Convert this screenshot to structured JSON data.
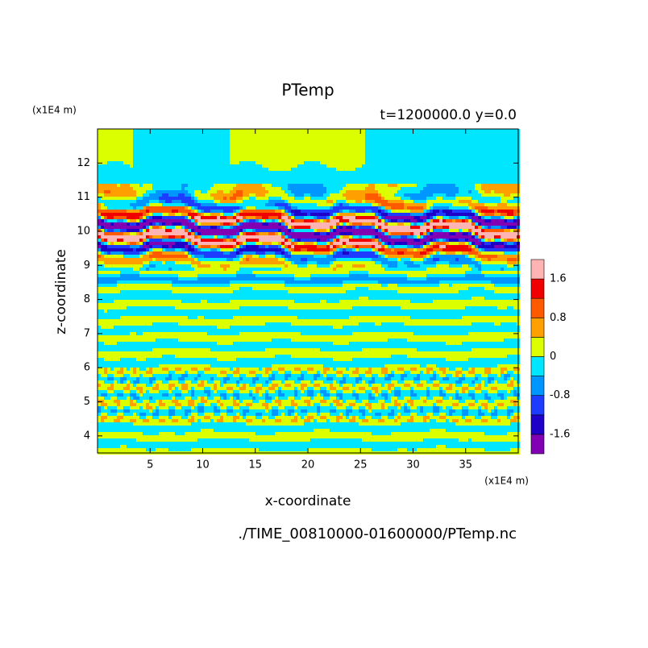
{
  "chart_data": {
    "type": "contour",
    "title": "PTemp",
    "subtitle": "t=1200000.0 y=0.0",
    "y_unit": "(x1E4 m)",
    "x_unit": "(x1E4 m)",
    "x_label": "x-coordinate",
    "y_label": "z-coordinate",
    "footnote": "./TIME_00810000-01600000/PTemp.nc",
    "xlim": [
      0,
      40
    ],
    "xticks": [
      5,
      10,
      15,
      20,
      25,
      30,
      35
    ],
    "ylim": [
      3.5,
      13
    ],
    "yticks": [
      4,
      5,
      6,
      7,
      8,
      9,
      10,
      11,
      12
    ],
    "levels": [
      -1.6,
      -1.2,
      -0.8,
      -0.4,
      0,
      0.4,
      0.8,
      1.2,
      1.6
    ],
    "colors": [
      "#8200b4",
      "#1e00c8",
      "#1e3cff",
      "#0096ff",
      "#00e6ff",
      "#dcff00",
      "#ffa000",
      "#ff5a00",
      "#f00000",
      "#ffb4b4"
    ],
    "colorbar_ticks": [
      1.6,
      0.8,
      0,
      -0.8,
      -1.6
    ]
  }
}
